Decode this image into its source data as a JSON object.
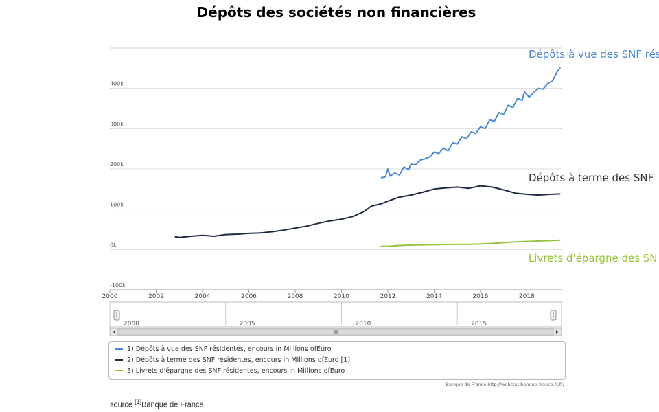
{
  "title": "Dépôts des sociétés non financières",
  "colors": {
    "series1": "#4a8ad4",
    "series2": "#1e2a44",
    "series3": "#96c23a",
    "grid": "#dcdcdc"
  },
  "chart_data": {
    "type": "line",
    "title": "Dépôts des sociétés non financières",
    "xlim": [
      2000,
      2019.5
    ],
    "ylim": [
      -100000,
      500000
    ],
    "y_ticks": [
      -100000,
      0,
      100000,
      200000,
      300000,
      400000
    ],
    "y_tick_labels": [
      "-100k",
      "0k",
      "100k",
      "200k",
      "300k",
      "400k"
    ],
    "x_ticks": [
      2000,
      2002,
      2004,
      2006,
      2008,
      2010,
      2012,
      2014,
      2016,
      2018
    ],
    "x_tick_labels": [
      "2000",
      "2002",
      "2004",
      "2006",
      "2008",
      "2010",
      "2012",
      "2014",
      "2016",
      "2018"
    ],
    "grid": true,
    "series": [
      {
        "name": "Dépôts à vue des SNF résidentes",
        "end_label": "Dépôts à vue des SNF rés",
        "x": [
          2011.7,
          2011.9,
          2012.0,
          2012.1,
          2012.3,
          2012.5,
          2012.7,
          2012.9,
          2013.0,
          2013.2,
          2013.4,
          2013.6,
          2013.8,
          2014.0,
          2014.2,
          2014.4,
          2014.6,
          2014.8,
          2015.0,
          2015.2,
          2015.4,
          2015.6,
          2015.8,
          2016.0,
          2016.2,
          2016.4,
          2016.6,
          2016.8,
          2017.0,
          2017.2,
          2017.4,
          2017.6,
          2017.8,
          2017.9,
          2018.1,
          2018.3,
          2018.5,
          2018.7,
          2018.9,
          2019.1,
          2019.3,
          2019.45
        ],
        "values": [
          178000,
          180000,
          200000,
          182000,
          190000,
          185000,
          205000,
          198000,
          212000,
          210000,
          222000,
          225000,
          230000,
          242000,
          238000,
          252000,
          245000,
          265000,
          262000,
          280000,
          275000,
          292000,
          288000,
          305000,
          300000,
          322000,
          318000,
          340000,
          335000,
          358000,
          352000,
          375000,
          370000,
          392000,
          378000,
          390000,
          400000,
          398000,
          412000,
          418000,
          440000,
          452000
        ]
      },
      {
        "name": "Dépôts à terme des SNF résidentes",
        "end_label": "Dépôts à terme des SNF",
        "x": [
          2002.8,
          2003.0,
          2003.5,
          2004.0,
          2004.5,
          2005.0,
          2005.5,
          2006.0,
          2006.5,
          2007.0,
          2007.5,
          2008.0,
          2008.5,
          2009.0,
          2009.5,
          2010.0,
          2010.5,
          2011.0,
          2011.3,
          2011.7,
          2012.0,
          2012.5,
          2013.0,
          2013.5,
          2014.0,
          2014.5,
          2015.0,
          2015.5,
          2016.0,
          2016.5,
          2017.0,
          2017.5,
          2018.0,
          2018.5,
          2019.0,
          2019.45
        ],
        "values": [
          32000,
          30000,
          33000,
          35000,
          33000,
          37000,
          38000,
          40000,
          41000,
          44000,
          48000,
          53000,
          58000,
          65000,
          71000,
          75000,
          82000,
          95000,
          108000,
          113000,
          120000,
          130000,
          135000,
          142000,
          150000,
          153000,
          155000,
          152000,
          158000,
          155000,
          148000,
          140000,
          137000,
          135000,
          137000,
          138000
        ]
      },
      {
        "name": "Livrets d'épargne des SNF résidentes",
        "end_label": "Livrets d'épargne des SN",
        "x": [
          2011.7,
          2012.0,
          2012.5,
          2013.0,
          2013.5,
          2014.0,
          2014.5,
          2015.0,
          2015.5,
          2016.0,
          2016.5,
          2017.0,
          2017.5,
          2018.0,
          2018.5,
          2019.0,
          2019.45
        ],
        "values": [
          8000,
          7500,
          10000,
          11000,
          11500,
          12000,
          12500,
          13000,
          13000,
          13500,
          15000,
          17000,
          19000,
          20000,
          21000,
          22000,
          23000
        ]
      }
    ],
    "navigator": {
      "labels": [
        "2000",
        "2005",
        "2010",
        "2015"
      ],
      "range": [
        2000,
        2019.5
      ]
    }
  },
  "legend": [
    "1) Dépôts à vue des SNF résidentes, encours in Millions ofEuro",
    "2) Dépôts à terme des SNF résidentes, encours in Millions ofEuro [1]",
    "3) Livrets d'épargne des SNF résidentes, encours in Millions ofEuro"
  ],
  "credit": "Banque de France http://webstat.banque-france.fr/fr/",
  "source": {
    "prefix": "source ",
    "ref": "[1]",
    "text": "Banque de France"
  }
}
